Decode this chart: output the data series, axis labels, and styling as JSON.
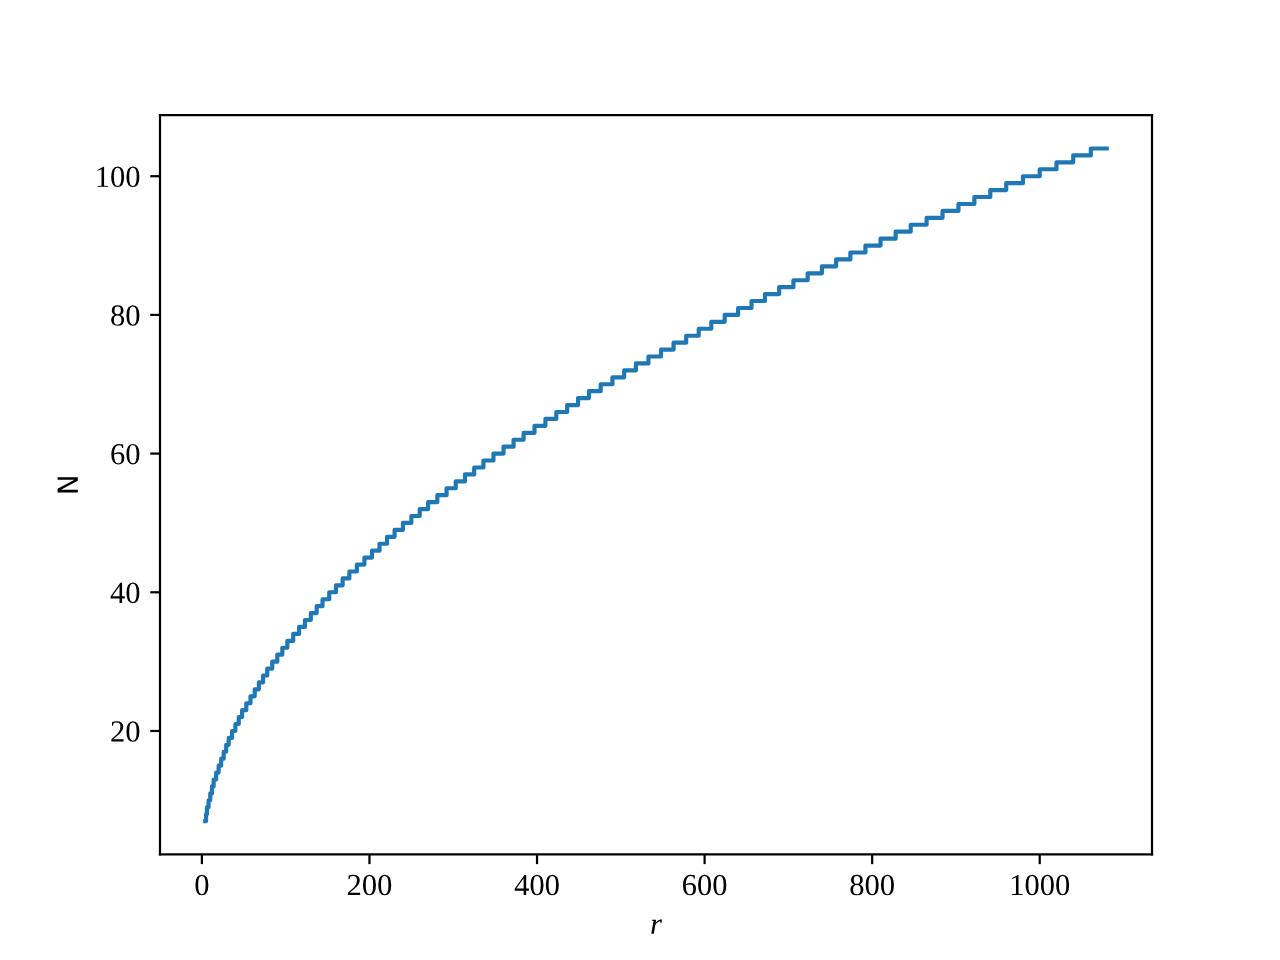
{
  "chart_data": {
    "type": "step",
    "xlabel": "r",
    "ylabel": "N",
    "color": "#1f77b4",
    "x": [
      4,
      5,
      6,
      8,
      10,
      12,
      14,
      17,
      20,
      23,
      26,
      29,
      32,
      36,
      40,
      44,
      48,
      53,
      58,
      63,
      68,
      73,
      78,
      84,
      90,
      96,
      102,
      109,
      116,
      123,
      130,
      137,
      144,
      152,
      160,
      168,
      176,
      185,
      194,
      203,
      212,
      221,
      230,
      240,
      250,
      260,
      270,
      281,
      292,
      303,
      314,
      325,
      336,
      348,
      360,
      372,
      384,
      397,
      410,
      423,
      436,
      449,
      462,
      476,
      490,
      504,
      518,
      533,
      548,
      563,
      578,
      593,
      608,
      624,
      640,
      656,
      672,
      689,
      706,
      723,
      740,
      757,
      774,
      792,
      810,
      828,
      846,
      865,
      884,
      903,
      922,
      941,
      960,
      980,
      1000,
      1020,
      1040,
      1061,
      1080
    ],
    "values": [
      7,
      8,
      9,
      10,
      11,
      12,
      13,
      14,
      15,
      16,
      17,
      18,
      19,
      20,
      21,
      22,
      23,
      24,
      25,
      26,
      27,
      28,
      29,
      30,
      31,
      32,
      33,
      34,
      35,
      36,
      37,
      38,
      39,
      40,
      41,
      42,
      43,
      44,
      45,
      46,
      47,
      48,
      49,
      50,
      51,
      52,
      53,
      54,
      55,
      56,
      57,
      58,
      59,
      60,
      61,
      62,
      63,
      64,
      65,
      66,
      67,
      68,
      69,
      70,
      71,
      72,
      73,
      74,
      75,
      76,
      77,
      78,
      79,
      80,
      81,
      82,
      83,
      84,
      85,
      86,
      87,
      88,
      89,
      90,
      91,
      92,
      93,
      94,
      95,
      96,
      97,
      98,
      99,
      100,
      101,
      102,
      103,
      104,
      104
    ],
    "xlim": [
      -50,
      1134
    ],
    "ylim": [
      2.2,
      108.8
    ],
    "xticks": [
      0,
      200,
      400,
      600,
      800,
      1000
    ],
    "yticks": [
      20,
      40,
      60,
      80,
      100
    ]
  }
}
